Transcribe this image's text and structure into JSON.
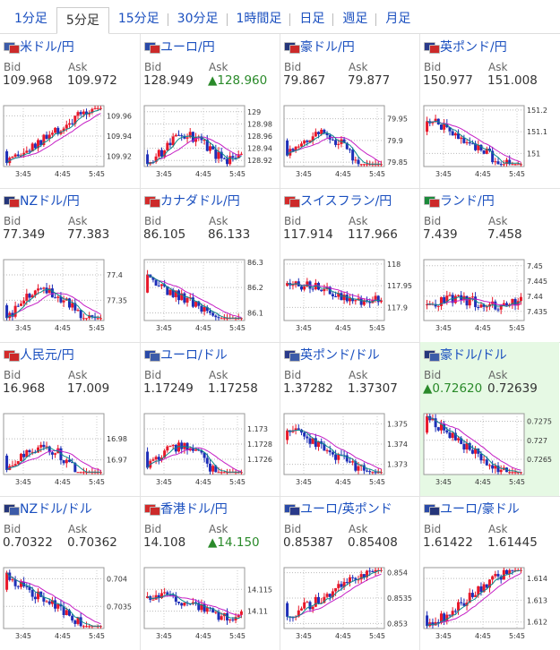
{
  "tabs": [
    "1分足",
    "5分足",
    "15分足",
    "30分足",
    "1時間足",
    "日足",
    "週足",
    "月足"
  ],
  "active_tab": 1,
  "labels": {
    "bid": "Bid",
    "ask": "Ask"
  },
  "colors": {
    "up": "#e8182a",
    "down": "#1e2fb8",
    "ma_pink": "#c51ec5",
    "ma_teal": "#0c8a8a",
    "link": "#1a4fbf",
    "highlight": "#e6f9e4"
  },
  "x_ticks": [
    "3:45",
    "4:45",
    "5:45"
  ],
  "cards": [
    {
      "name": "米ドル/円",
      "bid": "109.968",
      "ask": "109.972",
      "ask_up": false,
      "bid_up": false,
      "flags": [
        "#3c5ba8",
        "#cc2a2a"
      ],
      "ticks": [
        "109.96",
        "109.94",
        "109.92"
      ],
      "ylim": [
        109.91,
        109.97
      ],
      "start": 109.925,
      "end": 109.96,
      "trend": "up"
    },
    {
      "name": "ユーロ/円",
      "bid": "128.949",
      "ask": "128.960",
      "ask_up": true,
      "bid_up": false,
      "flags": [
        "#2a4aa8",
        "#cc2a2a"
      ],
      "ticks": [
        "129",
        "128.98",
        "128.96",
        "128.94",
        "128.92"
      ],
      "ylim": [
        128.91,
        129.01
      ],
      "start": 128.93,
      "end": 128.945,
      "trend": "hump"
    },
    {
      "name": "豪ドル/円",
      "bid": "79.867",
      "ask": "79.877",
      "ask_up": false,
      "bid_up": false,
      "flags": [
        "#25367a",
        "#cc2a2a"
      ],
      "ticks": [
        "79.95",
        "79.9",
        "79.85"
      ],
      "ylim": [
        79.84,
        79.98
      ],
      "start": 79.9,
      "end": 79.855,
      "trend": "hump"
    },
    {
      "name": "英ポンド/円",
      "bid": "150.977",
      "ask": "151.008",
      "ask_up": false,
      "bid_up": false,
      "flags": [
        "#2a3a8a",
        "#cc2a2a"
      ],
      "ticks": [
        "151.2",
        "151.1",
        "151"
      ],
      "ylim": [
        150.94,
        151.22
      ],
      "start": 151.1,
      "end": 150.97,
      "trend": "down"
    },
    {
      "name": "NZドル/円",
      "bid": "77.349",
      "ask": "77.383",
      "ask_up": false,
      "bid_up": false,
      "flags": [
        "#25367a",
        "#cc2a2a"
      ],
      "ticks": [
        "77.4",
        "77.35"
      ],
      "ylim": [
        77.31,
        77.43
      ],
      "start": 77.34,
      "end": 77.34,
      "trend": "hump"
    },
    {
      "name": "カナダドル/円",
      "bid": "86.105",
      "ask": "86.133",
      "ask_up": false,
      "bid_up": false,
      "flags": [
        "#d42b2b",
        "#cc2a2a"
      ],
      "ticks": [
        "86.3",
        "86.2",
        "86.1"
      ],
      "ylim": [
        86.07,
        86.31
      ],
      "start": 86.18,
      "end": 86.09,
      "trend": "down"
    },
    {
      "name": "スイスフラン/円",
      "bid": "117.914",
      "ask": "117.966",
      "ask_up": false,
      "bid_up": false,
      "flags": [
        "#d42b2b",
        "#cc2a2a"
      ],
      "ticks": [
        "118",
        "117.95",
        "117.9"
      ],
      "ylim": [
        117.87,
        118.01
      ],
      "start": 117.95,
      "end": 117.92,
      "trend": "flat"
    },
    {
      "name": "ランド/円",
      "bid": "7.439",
      "ask": "7.458",
      "ask_up": false,
      "bid_up": false,
      "flags": [
        "#1b8a3a",
        "#cc2a2a"
      ],
      "ticks": [
        "7.45",
        "7.445",
        "7.44",
        "7.435"
      ],
      "ylim": [
        7.432,
        7.452
      ],
      "start": 7.437,
      "end": 7.439,
      "trend": "flat"
    },
    {
      "name": "人民元/円",
      "bid": "16.968",
      "ask": "17.009",
      "ask_up": false,
      "bid_up": false,
      "flags": [
        "#d42b2b",
        "#cc2a2a"
      ],
      "ticks": [
        "16.98",
        "16.97"
      ],
      "ylim": [
        16.963,
        16.992
      ],
      "start": 16.972,
      "end": 16.966,
      "trend": "hump"
    },
    {
      "name": "ユーロ/ドル",
      "bid": "1.17249",
      "ask": "1.17258",
      "ask_up": false,
      "bid_up": false,
      "flags": [
        "#2a4aa8",
        "#3c5ba8"
      ],
      "ticks": [
        "1.173",
        "1.1728",
        "1.1726"
      ],
      "ylim": [
        1.1724,
        1.1732
      ],
      "start": 1.1727,
      "end": 1.1724,
      "trend": "hump"
    },
    {
      "name": "英ポンド/ドル",
      "bid": "1.37282",
      "ask": "1.37307",
      "ask_up": false,
      "bid_up": false,
      "flags": [
        "#2a3a8a",
        "#3c5ba8"
      ],
      "ticks": [
        "1.375",
        "1.374",
        "1.373"
      ],
      "ylim": [
        1.3725,
        1.3755
      ],
      "start": 1.3742,
      "end": 1.3728,
      "trend": "down"
    },
    {
      "name": "豪ドル/ドル",
      "bid": "0.72620",
      "ask": "0.72639",
      "ask_up": false,
      "bid_up": true,
      "flags": [
        "#25367a",
        "#3c5ba8"
      ],
      "ticks": [
        "0.7275",
        "0.727",
        "0.7265"
      ],
      "ylim": [
        0.7261,
        0.7277
      ],
      "start": 0.7272,
      "end": 0.7262,
      "trend": "down"
    },
    {
      "name": "NZドル/ドル",
      "bid": "0.70322",
      "ask": "0.70362",
      "ask_up": false,
      "bid_up": false,
      "flags": [
        "#25367a",
        "#3c5ba8"
      ],
      "ticks": [
        "0.704",
        "0.7035"
      ],
      "ylim": [
        0.7031,
        0.7042
      ],
      "start": 0.7038,
      "end": 0.7032,
      "trend": "down"
    },
    {
      "name": "香港ドル/円",
      "bid": "14.108",
      "ask": "14.150",
      "ask_up": true,
      "bid_up": false,
      "flags": [
        "#d42b2b",
        "#cc2a2a"
      ],
      "ticks": [
        "14.115",
        "14.11"
      ],
      "ylim": [
        14.106,
        14.12
      ],
      "start": 14.113,
      "end": 14.109,
      "trend": "flat"
    },
    {
      "name": "ユーロ/英ポンド",
      "bid": "0.85387",
      "ask": "0.85408",
      "ask_up": false,
      "bid_up": false,
      "flags": [
        "#2a4aa8",
        "#2a3a8a"
      ],
      "ticks": [
        "0.854",
        "0.8535",
        "0.853"
      ],
      "ylim": [
        0.8529,
        0.8541
      ],
      "start": 0.8534,
      "end": 0.8539,
      "trend": "up"
    },
    {
      "name": "ユーロ/豪ドル",
      "bid": "1.61422",
      "ask": "1.61445",
      "ask_up": false,
      "bid_up": false,
      "flags": [
        "#2a4aa8",
        "#25367a"
      ],
      "ticks": [
        "1.614",
        "1.613",
        "1.612"
      ],
      "ylim": [
        1.6117,
        1.6145
      ],
      "start": 1.6123,
      "end": 1.6142,
      "trend": "up"
    }
  ]
}
